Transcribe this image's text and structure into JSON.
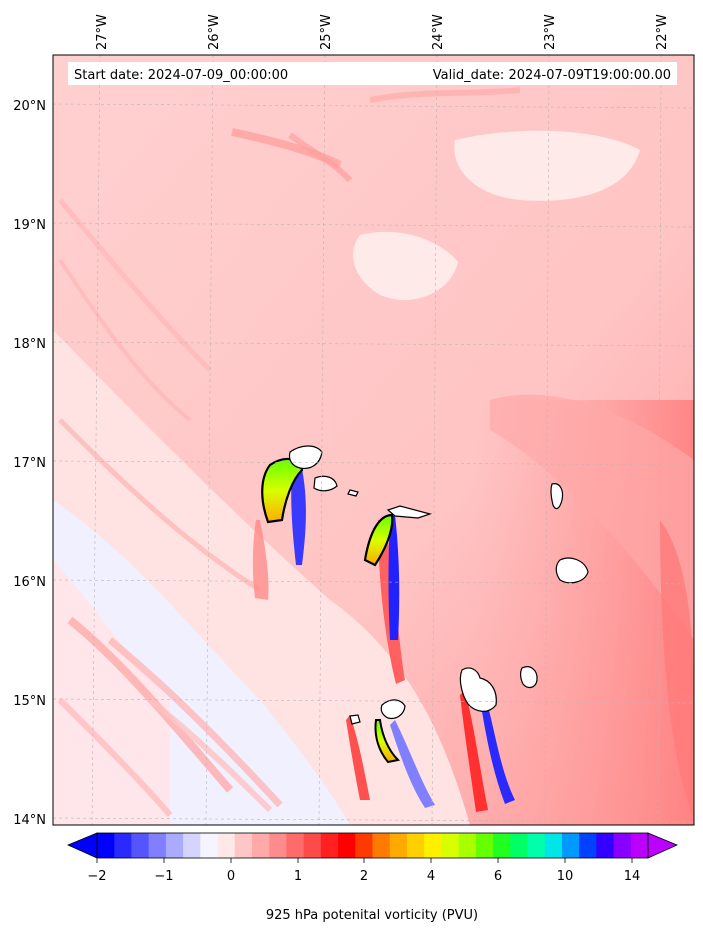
{
  "info": {
    "start_label": "Start date: 2024-07-09_00:00:00",
    "valid_label": "Valid_date: 2024-07-09T19:00:00.00"
  },
  "map": {
    "lon_labels": [
      "27°W",
      "26°W",
      "25°W",
      "24°W",
      "23°W",
      "22°W"
    ],
    "lat_labels": [
      "20°N",
      "19°N",
      "18°N",
      "17°N",
      "16°N",
      "15°N",
      "14°N"
    ],
    "gridlines": true
  },
  "colorbar": {
    "label": "925 hPa potenital vorticity (PVU)",
    "tick_labels": [
      "−2",
      "−1",
      "0",
      "1",
      "2",
      "4",
      "6",
      "10",
      "14"
    ],
    "colors": [
      "#0000ff",
      "#2a2aff",
      "#5555ff",
      "#7f7fff",
      "#aaaaff",
      "#d4d4ff",
      "#f5f5ff",
      "#ffe8e8",
      "#ffc6c6",
      "#ffa9a9",
      "#ff8c8c",
      "#ff6a6a",
      "#ff4a4a",
      "#ff2020",
      "#ff0000",
      "#ff3a00",
      "#ff7a00",
      "#ffaa00",
      "#ffd000",
      "#fff000",
      "#d8ff00",
      "#a8ff00",
      "#66ff00",
      "#20ff20",
      "#00ff66",
      "#00ffaa",
      "#00e6e6",
      "#0099ff",
      "#0040ff",
      "#3300ff",
      "#8800ff",
      "#bb00ff"
    ]
  },
  "chart_data": {
    "type": "heatmap",
    "variable": "925 hPa potenital vorticity (PVU)",
    "start_date": "2024-07-09_00:00:00",
    "valid_date": "2024-07-09T19:00:00.00",
    "lon_range_deg": [
      -27.35,
      -21.7
    ],
    "lat_range_deg": [
      13.95,
      20.45
    ],
    "colorbar_ticks": [
      -2,
      -1,
      0,
      1,
      2,
      4,
      6,
      10,
      14
    ],
    "colorbar_extend": "both",
    "features": [
      {
        "feature": "cape-verde-islands",
        "lon_range": [
          -25.4,
          -22.7
        ],
        "lat_range": [
          14.8,
          17.2
        ]
      },
      {
        "feature": "positive-pv-streamers",
        "lon": [
          -25.6,
          -24.6,
          -24.4,
          -23.9
        ],
        "lat": [
          16.7,
          16.3,
          14.7,
          15.1
        ],
        "max_pvu": 8
      },
      {
        "feature": "negative-pv-streamers",
        "lon": [
          -25.2,
          -24.4,
          -23.6
        ],
        "lat": [
          16.5,
          16.0,
          14.9
        ],
        "min_pvu": -2
      }
    ]
  }
}
